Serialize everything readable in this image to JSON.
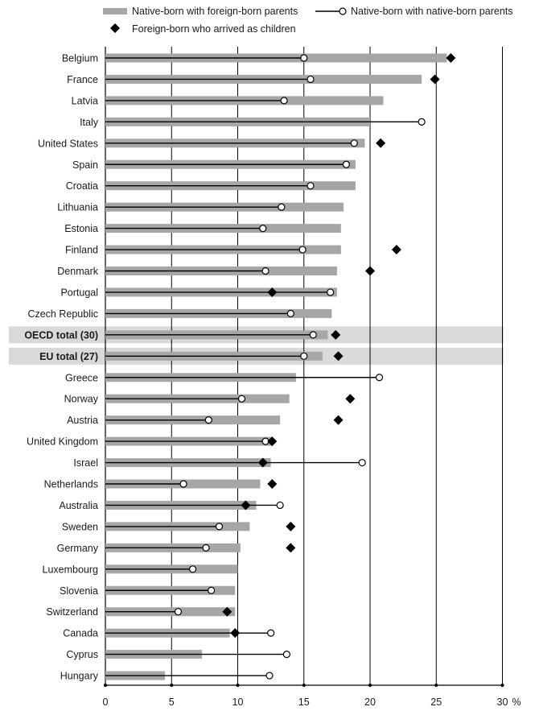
{
  "chart_data": {
    "type": "bar",
    "xlim": [
      0,
      30
    ],
    "x_unit": "%",
    "xticks": [
      "0",
      "5",
      "10",
      "15",
      "20",
      "25",
      "30"
    ],
    "grid": true,
    "legend_placement": "top",
    "colors": {
      "bar": "#a6a6a6",
      "line": "#000000",
      "highlight_band": "#d9d9d9",
      "axis": "#000000"
    },
    "series": [
      {
        "name": "Native-born with foreign-born parents",
        "marker": "bar"
      },
      {
        "name": "Native-born with native-born parents",
        "marker": "circle"
      },
      {
        "name": "Foreign-born who arrived as children",
        "marker": "diamond"
      }
    ],
    "categories": [
      "Belgium",
      "France",
      "Latvia",
      "Italy",
      "United States",
      "Spain",
      "Croatia",
      "Lithuania",
      "Estonia",
      "Finland",
      "Denmark",
      "Portugal",
      "Czech Republic",
      "OECD total (30)",
      "EU total (27)",
      "Greece",
      "Norway",
      "Austria",
      "United Kingdom",
      "Israel",
      "Netherlands",
      "Australia",
      "Sweden",
      "Germany",
      "Luxembourg",
      "Slovenia",
      "Switzerland",
      "Canada",
      "Cyprus",
      "Hungary"
    ],
    "highlighted": [
      "OECD total (30)",
      "EU total (27)"
    ],
    "bar_values": [
      25.8,
      23.9,
      21.0,
      20.0,
      19.6,
      18.9,
      18.9,
      18.0,
      17.8,
      17.8,
      17.5,
      17.5,
      17.1,
      16.8,
      16.4,
      14.4,
      13.9,
      13.2,
      12.6,
      12.5,
      11.7,
      11.4,
      10.9,
      10.2,
      10.0,
      9.8,
      9.8,
      9.4,
      7.3,
      4.5
    ],
    "circle_values": [
      15.0,
      15.5,
      13.5,
      23.9,
      18.8,
      18.2,
      15.5,
      13.3,
      11.9,
      14.9,
      12.1,
      17.0,
      14.0,
      15.7,
      15.0,
      20.7,
      10.3,
      7.8,
      12.1,
      19.4,
      5.9,
      13.2,
      8.6,
      7.6,
      6.6,
      8.0,
      5.5,
      12.5,
      13.7,
      12.4
    ],
    "diamond_values": [
      26.1,
      24.9,
      null,
      null,
      20.8,
      null,
      null,
      null,
      null,
      22.0,
      20.0,
      12.6,
      null,
      17.4,
      17.6,
      null,
      18.5,
      17.6,
      12.6,
      11.9,
      12.6,
      10.6,
      14.0,
      14.0,
      null,
      null,
      9.2,
      9.8,
      null,
      null
    ]
  }
}
